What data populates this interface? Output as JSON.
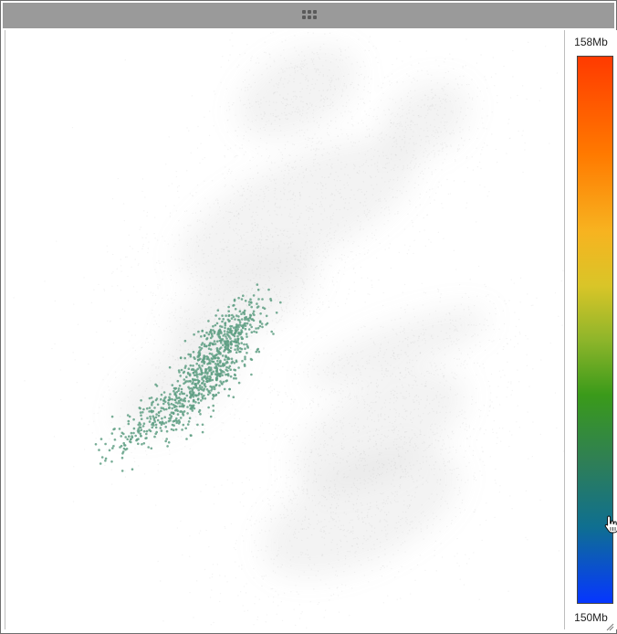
{
  "legend": {
    "max_label": "158Mb",
    "min_label": "150Mb",
    "gradient_colors": [
      "#ff3a00",
      "#ff7a00",
      "#f7b320",
      "#d9c528",
      "#8db52a",
      "#3a9a1a",
      "#2f7f55",
      "#0f6f90",
      "#0a4fd0",
      "#0636ff"
    ]
  },
  "colors": {
    "titlebar": "#9a9a9a",
    "background_points": "#9e9e9e",
    "highlight_points": "#5f9f84"
  },
  "icons": {
    "drag": "grip-dots-icon",
    "cursor": "hand-pointer-icon",
    "resize": "resize-grip-icon"
  }
}
